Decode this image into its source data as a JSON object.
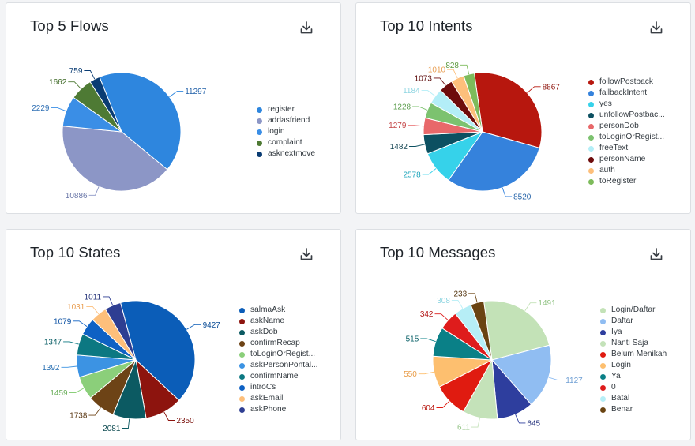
{
  "chart_data": [
    {
      "type": "pie",
      "title": "Top 5 Flows",
      "categories": [
        "register",
        "addasfriend",
        "login",
        "complaint",
        "asknextmove"
      ],
      "values": [
        11297,
        10886,
        2229,
        1662,
        759
      ],
      "colors": [
        "#2e86de",
        "#8c96c6",
        "#3a8ee6",
        "#4e7a34",
        "#0a3c73"
      ],
      "label_colors": [
        "#1f5fa8",
        "#6a77a8",
        "#2e6fb4",
        "#3f6a27",
        "#0a3c73"
      ],
      "legend_position": "right",
      "start_angle": 112
    },
    {
      "type": "pie",
      "title": "Top 10 Intents",
      "categories": [
        "followPostback",
        "fallbackIntent",
        "yes",
        "unfollowPostbac...",
        "personDob",
        "toLoginOrRegist...",
        "freeText",
        "personName",
        "auth",
        "toRegister"
      ],
      "values": [
        8867,
        8520,
        2578,
        1482,
        1279,
        1228,
        1184,
        1073,
        1010,
        828
      ],
      "colors": [
        "#b7170e",
        "#3582dc",
        "#36d2ea",
        "#0c5061",
        "#e8686a",
        "#7cc26f",
        "#b3eef7",
        "#6e0c0c",
        "#fdbf7b",
        "#7dbb5b"
      ],
      "label_colors": [
        "#8e130b",
        "#2563a8",
        "#22a7bd",
        "#0c3f4c",
        "#c44546",
        "#5d9e4f",
        "#8ed5e1",
        "#5c0a0a",
        "#e89e52",
        "#5e9a3e"
      ],
      "legend_position": "right",
      "start_angle": 98
    },
    {
      "type": "pie",
      "title": "Top 10 States",
      "categories": [
        "salmaAsk",
        "askName",
        "askDob",
        "confirmRecap",
        "toLoginOrRegist...",
        "askPersonPontal...",
        "confirmName",
        "introCs",
        "askEmail",
        "askPhone"
      ],
      "values": [
        9427,
        2350,
        2081,
        1738,
        1459,
        1392,
        1347,
        1079,
        1031,
        1011
      ],
      "colors": [
        "#0b5db8",
        "#8d140e",
        "#0c5a62",
        "#6d4316",
        "#8bcf7a",
        "#3c93e3",
        "#0c7882",
        "#0e61c4",
        "#fdbf7b",
        "#2e3e92"
      ],
      "label_colors": [
        "#0a4c96",
        "#7a110c",
        "#0c4a50",
        "#5a3712",
        "#6aae5a",
        "#2c72b4",
        "#0b5f67",
        "#0c51a3",
        "#e89e52",
        "#26347a"
      ],
      "legend_position": "right",
      "start_angle": 105
    },
    {
      "type": "pie",
      "title": "Top 10 Messages",
      "categories": [
        "Login/Daftar",
        "Daftar",
        "Iya",
        "Nanti Saja",
        "Belum Menikah",
        "Login",
        "Ya",
        "0",
        "Batal",
        "Benar"
      ],
      "values": [
        1491,
        1127,
        645,
        611,
        604,
        550,
        515,
        342,
        308,
        233
      ],
      "colors": [
        "#c3e2b7",
        "#90bdf2",
        "#2e3e9e",
        "#c4e2b9",
        "#e01b10",
        "#fdbf6f",
        "#0a8087",
        "#de1c1c",
        "#b6eef6",
        "#6a4412"
      ],
      "label_colors": [
        "#93c486",
        "#6f9fd4",
        "#26347e",
        "#93c486",
        "#b81810",
        "#e89a44",
        "#0a6168",
        "#b51818",
        "#8ed5e1",
        "#553610"
      ],
      "legend_position": "right",
      "start_angle": 98
    }
  ],
  "icons": {
    "download": "download-icon"
  }
}
